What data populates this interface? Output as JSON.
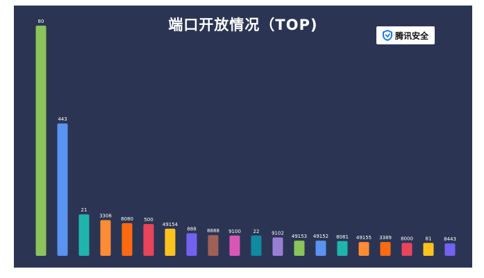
{
  "header": {
    "title": "端口开放情况（TOP)",
    "logo_text": "腾讯安全",
    "logo_icon": "shield-icon"
  },
  "chart_data": {
    "type": "bar",
    "title": "端口开放情况（TOP)",
    "categories": [
      "80",
      "443",
      "21",
      "3306",
      "8080",
      "500",
      "49154",
      "888",
      "8888",
      "9100",
      "22",
      "9102",
      "49153",
      "49152",
      "8081",
      "49155",
      "3389",
      "8000",
      "81",
      "8443"
    ],
    "values": [
      1000,
      575,
      180,
      155,
      142,
      138,
      118,
      98,
      90,
      88,
      88,
      80,
      66,
      66,
      64,
      60,
      60,
      56,
      56,
      54
    ],
    "colors": [
      "#8bc45a",
      "#5a93f0",
      "#1fb5ad",
      "#ff8c35",
      "#ff6a10",
      "#e8445c",
      "#ffc21c",
      "#7362f0",
      "#a06058",
      "#d856b5",
      "#0f8aa0",
      "#9a7ed4",
      "#8bc45a",
      "#5a93f0",
      "#1fb5ad",
      "#ff8c35",
      "#ff6a10",
      "#e8445c",
      "#ffc21c",
      "#7362f0"
    ],
    "ylim": [
      0,
      1000
    ],
    "grid": false,
    "xlabel": "",
    "ylabel": ""
  }
}
